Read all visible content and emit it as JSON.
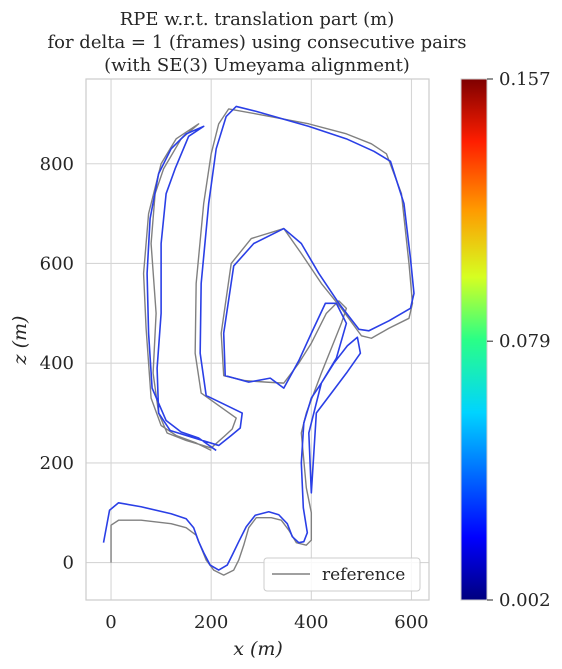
{
  "chart_data": {
    "type": "line",
    "title_lines": [
      "RPE w.r.t. translation part (m)",
      "for delta = 1 (frames) using consecutive pairs",
      "(with SE(3) Umeyama alignment)"
    ],
    "xlabel": "x (m)",
    "ylabel": "z (m)",
    "xlim": [
      -50,
      635
    ],
    "ylim": [
      -75,
      970
    ],
    "x_ticks": [
      0,
      200,
      400,
      600
    ],
    "y_ticks": [
      0,
      200,
      400,
      600,
      800
    ],
    "x_tick_labels": [
      "0",
      "200",
      "400",
      "600"
    ],
    "y_tick_labels": [
      "0",
      "200",
      "400",
      "600",
      "800"
    ],
    "grid": true,
    "legend": {
      "position": "bottom-right",
      "entries": [
        "reference"
      ]
    },
    "colorbar": {
      "min": 0.002,
      "max": 0.157,
      "tick_values": [
        0.002,
        0.079,
        0.157
      ],
      "tick_labels": [
        "0.002",
        "0.079",
        "0.157"
      ],
      "colormap": "jet"
    },
    "series": [
      {
        "name": "reference",
        "color": "#808080",
        "points": [
          [
            0,
            0
          ],
          [
            0,
            75
          ],
          [
            15,
            85
          ],
          [
            60,
            85
          ],
          [
            120,
            78
          ],
          [
            150,
            70
          ],
          [
            170,
            55
          ],
          [
            180,
            30
          ],
          [
            190,
            5
          ],
          [
            205,
            -15
          ],
          [
            225,
            -25
          ],
          [
            245,
            -15
          ],
          [
            255,
            5
          ],
          [
            265,
            35
          ],
          [
            275,
            70
          ],
          [
            290,
            90
          ],
          [
            320,
            90
          ],
          [
            340,
            85
          ],
          [
            355,
            65
          ],
          [
            370,
            40
          ],
          [
            390,
            35
          ],
          [
            400,
            45
          ],
          [
            400,
            100
          ],
          [
            390,
            150
          ],
          [
            380,
            260
          ],
          [
            390,
            300
          ],
          [
            405,
            340
          ],
          [
            420,
            380
          ],
          [
            440,
            430
          ],
          [
            460,
            480
          ],
          [
            470,
            510
          ],
          [
            455,
            525
          ],
          [
            430,
            500
          ],
          [
            400,
            440
          ],
          [
            375,
            400
          ],
          [
            345,
            360
          ],
          [
            310,
            362
          ],
          [
            268,
            365
          ],
          [
            225,
            375
          ],
          [
            220,
            460
          ],
          [
            240,
            600
          ],
          [
            280,
            650
          ],
          [
            345,
            670
          ],
          [
            380,
            620
          ],
          [
            420,
            560
          ],
          [
            460,
            510
          ],
          [
            500,
            455
          ],
          [
            520,
            450
          ],
          [
            555,
            470
          ],
          [
            595,
            490
          ],
          [
            602,
            520
          ],
          [
            595,
            600
          ],
          [
            580,
            740
          ],
          [
            550,
            820
          ],
          [
            520,
            840
          ],
          [
            470,
            860
          ],
          [
            395,
            880
          ],
          [
            290,
            900
          ],
          [
            235,
            910
          ],
          [
            215,
            880
          ],
          [
            200,
            820
          ],
          [
            185,
            720
          ],
          [
            170,
            560
          ],
          [
            168,
            420
          ],
          [
            180,
            340
          ],
          [
            215,
            315
          ],
          [
            250,
            290
          ],
          [
            242,
            268
          ],
          [
            228,
            255
          ],
          [
            200,
            230
          ],
          [
            150,
            245
          ],
          [
            112,
            260
          ],
          [
            95,
            300
          ],
          [
            84,
            380
          ],
          [
            90,
            500
          ],
          [
            80,
            640
          ],
          [
            88,
            740
          ],
          [
            105,
            790
          ],
          [
            140,
            850
          ],
          [
            175,
            880
          ],
          [
            130,
            850
          ],
          [
            100,
            800
          ],
          [
            75,
            700
          ],
          [
            65,
            580
          ],
          [
            70,
            470
          ],
          [
            80,
            330
          ],
          [
            100,
            275
          ],
          [
            130,
            255
          ],
          [
            170,
            240
          ],
          [
            200,
            225
          ]
        ]
      },
      {
        "name": "",
        "color_by_error": true,
        "points": [
          [
            -15,
            40
          ],
          [
            -3,
            105
          ],
          [
            15,
            120
          ],
          [
            60,
            112
          ],
          [
            120,
            98
          ],
          [
            150,
            88
          ],
          [
            165,
            70
          ],
          [
            175,
            42
          ],
          [
            185,
            20
          ],
          [
            198,
            -5
          ],
          [
            215,
            -15
          ],
          [
            232,
            -5
          ],
          [
            242,
            15
          ],
          [
            255,
            42
          ],
          [
            270,
            72
          ],
          [
            288,
            95
          ],
          [
            315,
            102
          ],
          [
            335,
            96
          ],
          [
            352,
            78
          ],
          [
            362,
            52
          ],
          [
            375,
            40
          ],
          [
            385,
            42
          ],
          [
            392,
            60
          ],
          [
            384,
            110
          ],
          [
            380,
            200
          ],
          [
            385,
            280
          ],
          [
            400,
            330
          ],
          [
            420,
            360
          ],
          [
            445,
            400
          ],
          [
            472,
            435
          ],
          [
            492,
            452
          ],
          [
            498,
            420
          ],
          [
            470,
            380
          ],
          [
            440,
            340
          ],
          [
            410,
            300
          ],
          [
            400,
            140
          ],
          [
            395,
            260
          ],
          [
            420,
            360
          ],
          [
            450,
            410
          ],
          [
            470,
            480
          ],
          [
            450,
            520
          ],
          [
            428,
            520
          ],
          [
            400,
            460
          ],
          [
            375,
            405
          ],
          [
            345,
            350
          ],
          [
            318,
            370
          ],
          [
            275,
            362
          ],
          [
            228,
            375
          ],
          [
            225,
            460
          ],
          [
            245,
            595
          ],
          [
            285,
            640
          ],
          [
            345,
            670
          ],
          [
            380,
            640
          ],
          [
            415,
            580
          ],
          [
            455,
            520
          ],
          [
            495,
            468
          ],
          [
            515,
            465
          ],
          [
            555,
            485
          ],
          [
            598,
            510
          ],
          [
            605,
            540
          ],
          [
            598,
            610
          ],
          [
            585,
            720
          ],
          [
            558,
            805
          ],
          [
            525,
            825
          ],
          [
            470,
            850
          ],
          [
            395,
            875
          ],
          [
            290,
            905
          ],
          [
            250,
            915
          ],
          [
            230,
            895
          ],
          [
            210,
            830
          ],
          [
            195,
            720
          ],
          [
            180,
            560
          ],
          [
            178,
            420
          ],
          [
            190,
            335
          ],
          [
            225,
            318
          ],
          [
            262,
            300
          ],
          [
            258,
            270
          ],
          [
            240,
            255
          ],
          [
            215,
            235
          ],
          [
            160,
            252
          ],
          [
            118,
            265
          ],
          [
            95,
            300
          ],
          [
            92,
            390
          ],
          [
            100,
            500
          ],
          [
            100,
            640
          ],
          [
            110,
            740
          ],
          [
            128,
            790
          ],
          [
            155,
            855
          ],
          [
            185,
            875
          ],
          [
            150,
            860
          ],
          [
            120,
            830
          ],
          [
            95,
            780
          ],
          [
            78,
            690
          ],
          [
            72,
            580
          ],
          [
            75,
            460
          ],
          [
            82,
            350
          ],
          [
            110,
            285
          ],
          [
            140,
            262
          ],
          [
            175,
            250
          ],
          [
            210,
            225
          ]
        ]
      }
    ]
  }
}
